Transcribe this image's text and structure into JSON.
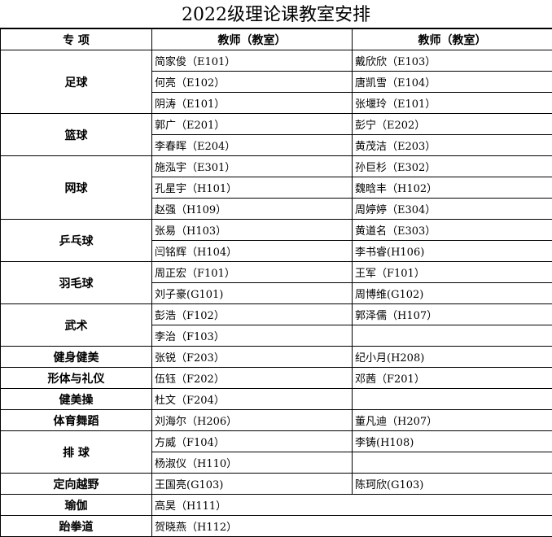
{
  "title": "2022级理论课教室安排",
  "headers": [
    "专 项",
    "教师（教室）",
    "教师（教室）"
  ],
  "groups": [
    {
      "sport": "足球",
      "rows": [
        [
          "简家俊（E101）",
          "戴欣欣（E103）"
        ],
        [
          "何亮（E102）",
          "唐凯雪（E104）"
        ],
        [
          "阴涛（E101）",
          "张堰玲（E101）"
        ]
      ]
    },
    {
      "sport": "篮球",
      "rows": [
        [
          "郭广（E201）",
          "彭宁（E202）"
        ],
        [
          "李春晖（E204）",
          "黄茂洁（E203）"
        ]
      ]
    },
    {
      "sport": "网球",
      "rows": [
        [
          "施泓宇（E301）",
          "孙巨杉（E302）"
        ],
        [
          "孔星宇（H101）",
          "魏晗丰（H102）"
        ],
        [
          "赵强（H109）",
          "周婷婷（E304）"
        ]
      ]
    },
    {
      "sport": "乒乓球",
      "rows": [
        [
          "张易（H103）",
          "黄道名（E303）"
        ],
        [
          "闫铭辉（H104）",
          "李书睿(H106)"
        ]
      ]
    },
    {
      "sport": "羽毛球",
      "rows": [
        [
          "周正宏（F101）",
          "王军（F101）"
        ],
        [
          "刘子豪(G101)",
          "周博维(G102)"
        ]
      ]
    },
    {
      "sport": "武术",
      "rows": [
        [
          "彭浩（F102）",
          "郭泽儒（H107）"
        ],
        [
          "李治（F103）",
          ""
        ]
      ]
    },
    {
      "sport": "健身健美",
      "rows": [
        [
          "张锐（F203）",
          "纪小月(H208)"
        ]
      ]
    },
    {
      "sport": "形体与礼仪",
      "rows": [
        [
          "伍钰（F202）",
          "邓茜（F201）"
        ]
      ]
    },
    {
      "sport": "健美操",
      "rows": [
        [
          "杜文（F204）",
          ""
        ]
      ]
    },
    {
      "sport": "体育舞蹈",
      "rows": [
        [
          "刘海尔（H206）",
          "董凡迪（H207）"
        ]
      ]
    },
    {
      "sport": "排 球",
      "rows": [
        [
          "方威（F104）",
          "李铸(H108)"
        ],
        [
          "杨淑仪（H110）",
          ""
        ]
      ]
    },
    {
      "sport": "定向越野",
      "rows": [
        [
          "王国亮(G103)",
          "陈珂欣(G103)"
        ]
      ]
    },
    {
      "sport": "瑜伽",
      "rows": [
        [
          "高昊（H111）"
        ]
      ]
    },
    {
      "sport": "跆拳道",
      "rows": [
        [
          "贺晓燕（H112）"
        ]
      ]
    }
  ]
}
